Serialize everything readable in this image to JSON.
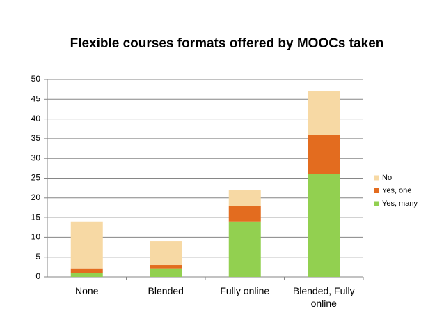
{
  "chart_data": {
    "type": "stacked_bar",
    "title": "Flexible courses formats offered by MOOCs taken",
    "categories": [
      "None",
      "Blended",
      "Fully online",
      "Blended, Fully online"
    ],
    "series": [
      {
        "name": "Yes, many",
        "color": "#92d050",
        "values": [
          1,
          2,
          14,
          26
        ]
      },
      {
        "name": "Yes, one",
        "color": "#e36c1f",
        "values": [
          1,
          1,
          4,
          10
        ]
      },
      {
        "name": "No",
        "color": "#f7d9a4",
        "values": [
          12,
          6,
          4,
          11
        ]
      }
    ],
    "ylim": [
      0,
      50
    ],
    "yticks": [
      0,
      5,
      10,
      15,
      20,
      25,
      30,
      35,
      40,
      45,
      50
    ],
    "grid": true,
    "legend": "right"
  }
}
